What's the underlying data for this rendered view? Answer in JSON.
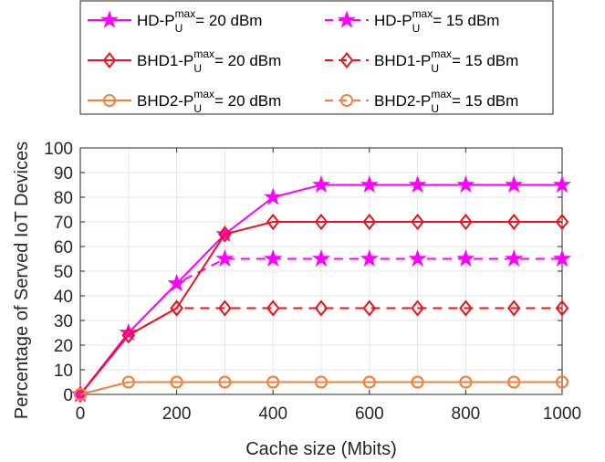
{
  "chart_data": {
    "type": "line",
    "xlabel": "Cache size (Mbits)",
    "ylabel": "Percentage of Served IoT Devices",
    "xlim": [
      0,
      1000
    ],
    "ylim": [
      0,
      100
    ],
    "xticks": [
      0,
      200,
      400,
      600,
      800,
      1000
    ],
    "yticks": [
      0,
      10,
      20,
      30,
      40,
      50,
      60,
      70,
      80,
      90,
      100
    ],
    "grid": true,
    "legend_position": "top (outside, above plot)",
    "x": [
      0,
      100,
      200,
      300,
      400,
      500,
      600,
      700,
      800,
      900,
      1000
    ],
    "series": [
      {
        "name_prefix": "HD-P",
        "sup": "max",
        "sub": "U",
        "name_suffix": "= 20 dBm",
        "color": "#ff00ff",
        "marker": "star",
        "linestyle": "solid",
        "values": [
          0,
          25,
          45,
          65,
          80,
          85,
          85,
          85,
          85,
          85,
          85
        ]
      },
      {
        "name_prefix": "HD-P",
        "sup": "max",
        "sub": "U",
        "name_suffix": "= 15 dBm",
        "color": "#ff00ff",
        "marker": "star",
        "linestyle": "dashed",
        "values": [
          0,
          25,
          45,
          55,
          55,
          55,
          55,
          55,
          55,
          55,
          55
        ]
      },
      {
        "name_prefix": "BHD1-P",
        "sup": "max",
        "sub": "U",
        "name_suffix": "= 20 dBm",
        "color": "#e8141e",
        "marker": "diamond",
        "linestyle": "solid",
        "values": [
          0,
          24,
          35,
          65,
          70,
          70,
          70,
          70,
          70,
          70,
          70
        ]
      },
      {
        "name_prefix": "BHD1-P",
        "sup": "max",
        "sub": "U",
        "name_suffix": "= 15 dBm",
        "color": "#e8141e",
        "marker": "diamond",
        "linestyle": "dashed",
        "values": [
          0,
          24,
          35,
          35,
          35,
          35,
          35,
          35,
          35,
          35,
          35
        ]
      },
      {
        "name_prefix": "BHD2-P",
        "sup": "max",
        "sub": "U",
        "name_suffix": "= 20 dBm",
        "color": "#f0823c",
        "marker": "circle",
        "linestyle": "solid",
        "values": [
          0,
          5,
          5,
          5,
          5,
          5,
          5,
          5,
          5,
          5,
          5
        ]
      },
      {
        "name_prefix": "BHD2-P",
        "sup": "max",
        "sub": "U",
        "name_suffix": "= 15 dBm",
        "color": "#f0823c",
        "marker": "circle",
        "linestyle": "dashed",
        "values": [
          0,
          5,
          5,
          5,
          5,
          5,
          5,
          5,
          5,
          5,
          5
        ]
      }
    ]
  }
}
